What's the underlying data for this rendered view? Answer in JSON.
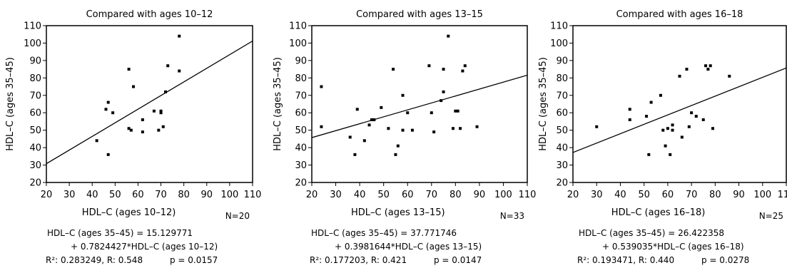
{
  "chart_data": [
    {
      "type": "scatter",
      "title": "Compared with ages 10–12",
      "xlabel": "HDL–C (ages 10–12)",
      "ylabel": "HDL–C (ages 35–45)",
      "n_label": "N=20",
      "xlim": [
        20,
        110
      ],
      "ylim": [
        20,
        110
      ],
      "xticks": [
        20,
        30,
        40,
        50,
        60,
        70,
        80,
        90,
        100,
        110
      ],
      "yticks": [
        20,
        30,
        40,
        50,
        60,
        70,
        80,
        90,
        100,
        110
      ],
      "regression": {
        "intercept": 15.129771,
        "slope": 0.7824427
      },
      "eq_line1": "HDL–C (ages 35–45) = 15.129771",
      "eq_line2": "+ 0.7824427*HDL–C (ages 10–12)",
      "r2_label": "R²: 0.283249, R: 0.548",
      "p_label": "p = 0.0157",
      "points": [
        [
          42,
          44
        ],
        [
          46,
          62
        ],
        [
          47,
          66
        ],
        [
          47,
          36
        ],
        [
          49,
          60
        ],
        [
          56,
          51
        ],
        [
          56,
          85
        ],
        [
          57,
          50
        ],
        [
          58,
          75
        ],
        [
          62,
          56
        ],
        [
          62,
          49
        ],
        [
          67,
          61
        ],
        [
          69,
          50
        ],
        [
          70,
          60
        ],
        [
          70,
          61
        ],
        [
          71,
          52
        ],
        [
          72,
          72
        ],
        [
          73,
          87
        ],
        [
          78,
          84
        ],
        [
          78,
          104
        ]
      ]
    },
    {
      "type": "scatter",
      "title": "Compared with ages 13–15",
      "xlabel": "HDL–C (ages 13–15)",
      "ylabel": "HDL–C (ages 35–45)",
      "n_label": "N=33",
      "xlim": [
        20,
        110
      ],
      "ylim": [
        20,
        110
      ],
      "xticks": [
        20,
        30,
        40,
        50,
        60,
        70,
        80,
        90,
        100,
        110
      ],
      "yticks": [
        20,
        30,
        40,
        50,
        60,
        70,
        80,
        90,
        100,
        110
      ],
      "regression": {
        "intercept": 37.771746,
        "slope": 0.3981644
      },
      "eq_line1": "HDL–C (ages 35–45) = 37.771746",
      "eq_line2": "+ 0.3981644*HDL–C (ages 13–15)",
      "r2_label": "R²: 0.177203, R: 0.421",
      "p_label": "p = 0.0147",
      "points": [
        [
          24,
          75
        ],
        [
          24,
          52
        ],
        [
          36,
          46
        ],
        [
          38,
          36
        ],
        [
          39,
          62
        ],
        [
          42,
          44
        ],
        [
          44,
          53
        ],
        [
          45,
          56
        ],
        [
          46,
          56
        ],
        [
          49,
          63
        ],
        [
          52,
          51
        ],
        [
          54,
          85
        ],
        [
          55,
          36
        ],
        [
          56,
          41
        ],
        [
          58,
          50
        ],
        [
          58,
          70
        ],
        [
          60,
          60
        ],
        [
          62,
          50
        ],
        [
          69,
          87
        ],
        [
          70,
          60
        ],
        [
          71,
          49
        ],
        [
          74,
          67
        ],
        [
          75,
          72
        ],
        [
          75,
          85
        ],
        [
          77,
          104
        ],
        [
          79,
          51
        ],
        [
          80,
          61
        ],
        [
          81,
          61
        ],
        [
          83,
          84
        ],
        [
          84,
          87
        ],
        [
          89,
          52
        ],
        [
          82,
          51
        ],
        [
          46,
          56
        ]
      ]
    },
    {
      "type": "scatter",
      "title": "Compared with ages 16–18",
      "xlabel": "HDL–C (ages 16–18)",
      "ylabel": "HDL–C (ages 35–45)",
      "n_label": "N=25",
      "xlim": [
        20,
        110
      ],
      "ylim": [
        20,
        110
      ],
      "xticks": [
        20,
        30,
        40,
        50,
        60,
        70,
        80,
        90,
        100,
        110
      ],
      "yticks": [
        20,
        30,
        40,
        50,
        60,
        70,
        80,
        90,
        100,
        110
      ],
      "regression": {
        "intercept": 26.422358,
        "slope": 0.539035
      },
      "eq_line1": "HDL–C (ages 35–45) = 26.422358",
      "eq_line2": "+ 0.539035*HDL–C (ages 16–18)",
      "r2_label": "R²: 0.193471, R: 0.440",
      "p_label": "p = 0.0278",
      "points": [
        [
          30,
          52
        ],
        [
          44,
          62
        ],
        [
          44,
          56
        ],
        [
          51,
          58
        ],
        [
          52,
          36
        ],
        [
          53,
          66
        ],
        [
          57,
          70
        ],
        [
          58,
          50
        ],
        [
          59,
          41
        ],
        [
          60,
          51
        ],
        [
          61,
          36
        ],
        [
          62,
          53
        ],
        [
          62,
          50
        ],
        [
          65,
          81
        ],
        [
          66,
          46
        ],
        [
          68,
          85
        ],
        [
          69,
          52
        ],
        [
          70,
          60
        ],
        [
          72,
          58
        ],
        [
          75,
          56
        ],
        [
          76,
          87
        ],
        [
          77,
          85
        ],
        [
          78,
          87
        ],
        [
          79,
          51
        ],
        [
          86,
          81
        ]
      ]
    }
  ]
}
